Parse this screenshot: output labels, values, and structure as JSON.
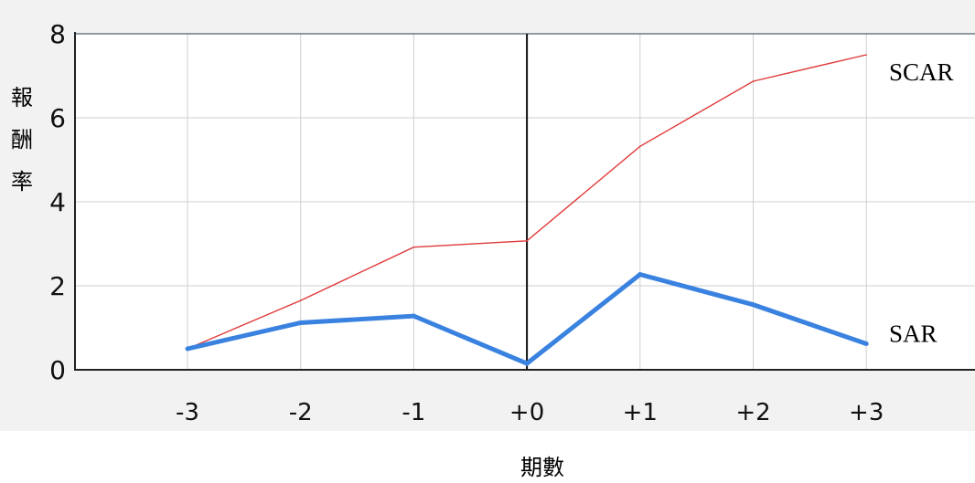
{
  "chart_data": {
    "type": "line",
    "title": "",
    "ylabel": "報酬率",
    "xlabel": "期數",
    "categories": [
      "-3",
      "-2",
      "-1",
      "+0",
      "+1",
      "+2",
      "+3"
    ],
    "ylim": [
      0,
      8
    ],
    "yticks": [
      0,
      2,
      4,
      6,
      8
    ],
    "grid": true,
    "reference_line": "+0",
    "series": [
      {
        "name": "SCAR",
        "color": "#e03a3a",
        "values": [
          0.5,
          1.65,
          2.92,
          3.07,
          5.32,
          6.87,
          7.5
        ]
      },
      {
        "name": "SAR",
        "color": "#3a82e0",
        "values": [
          0.5,
          1.12,
          1.28,
          0.15,
          2.27,
          1.55,
          0.62
        ]
      }
    ]
  }
}
